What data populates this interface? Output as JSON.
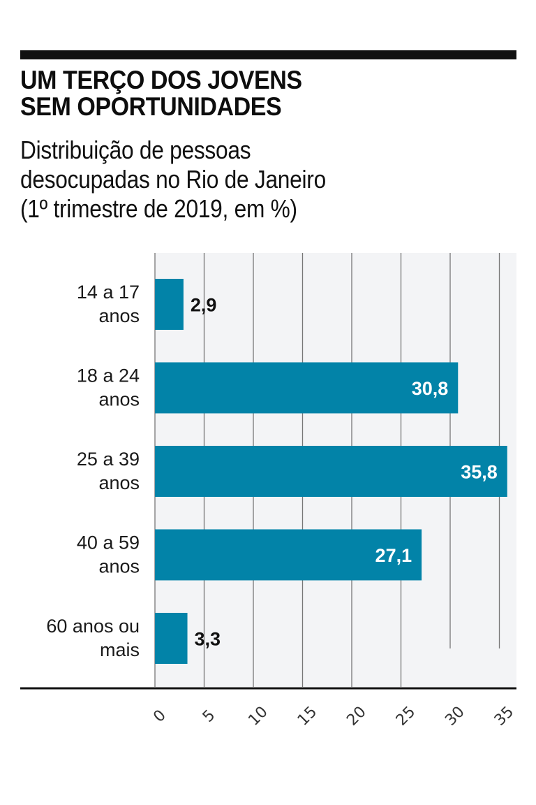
{
  "header": {
    "title_lines": [
      "UM TERÇO DOS JOVENS",
      "SEM OPORTUNIDADES"
    ],
    "subtitle_lines": [
      "Distribuição de pessoas",
      "desocupadas no Rio de Janeiro",
      "(1º trimestre de 2019, em %)"
    ]
  },
  "colors": {
    "bar": "#0283a8",
    "plot_background": "#f3f4f6",
    "gridline": "#777777",
    "axis": "#111111"
  },
  "chart_data": {
    "type": "bar",
    "orientation": "horizontal",
    "title": "UM TERÇO DOS JOVENS SEM OPORTUNIDADES",
    "subtitle": "Distribuição de pessoas desocupadas no Rio de Janeiro (1º trimestre de 2019, em %)",
    "categories": [
      [
        "14 a 17",
        "anos"
      ],
      [
        "18 a 24",
        "anos"
      ],
      [
        "25 a 39",
        "anos"
      ],
      [
        "40 a 59",
        "anos"
      ],
      [
        "60 anos ou",
        "mais"
      ]
    ],
    "values": [
      2.9,
      30.8,
      35.8,
      27.1,
      3.3
    ],
    "value_labels": [
      "2,9",
      "30,8",
      "35,8",
      "27,1",
      "3,3"
    ],
    "xlabel": "",
    "ylabel": "",
    "xlim": [
      0,
      35
    ],
    "xticks": [
      0,
      5,
      10,
      15,
      20,
      25,
      30,
      35
    ],
    "xtick_labels": [
      "0",
      "5",
      "10",
      "15",
      "20",
      "25",
      "30",
      "35"
    ],
    "grid": true,
    "legend": "none"
  }
}
